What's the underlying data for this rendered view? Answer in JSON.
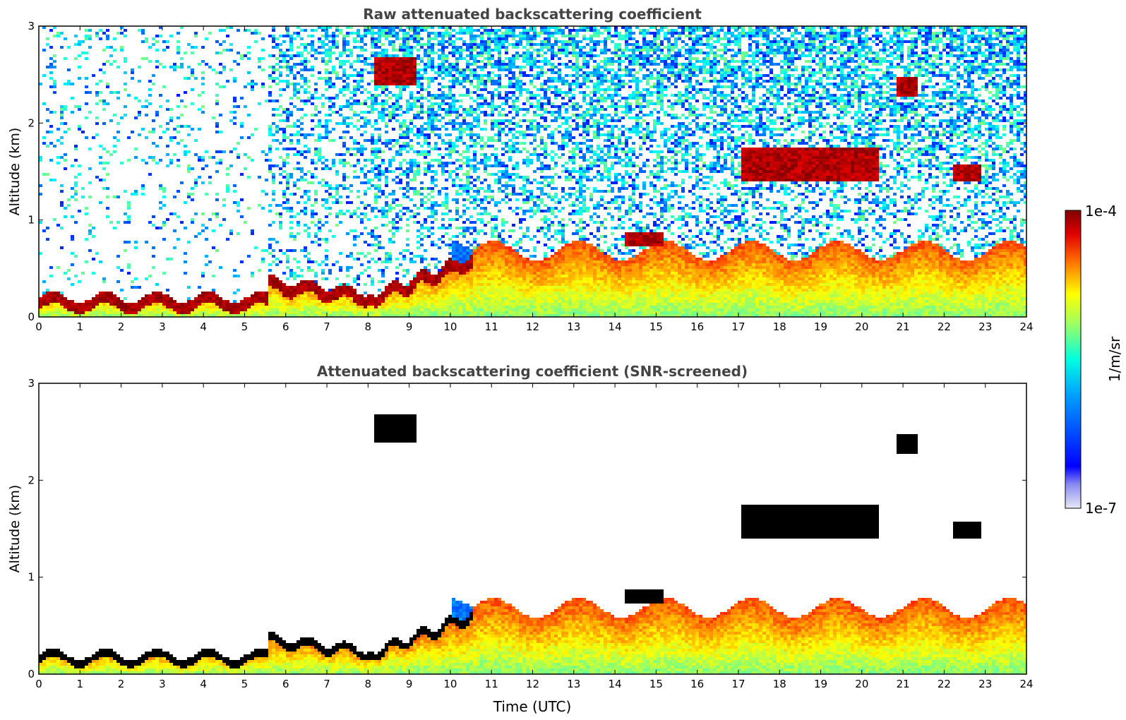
{
  "figure": {
    "panels": [
      {
        "title": "Raw attenuated backscattering coefficient",
        "ylabel": "Altitude (km)",
        "xlabel": "",
        "mode": "raw"
      },
      {
        "title": "Attenuated backscattering coefficient (SNR-screened)",
        "ylabel": "Altitude (km)",
        "xlabel": "Time (UTC)",
        "mode": "screened"
      }
    ],
    "colorbar": {
      "label": "1/m/sr",
      "max_label": "1e-4",
      "min_label": "1e-7",
      "colormap": "jet",
      "stops": [
        "#e8e8f8",
        "#0000ff",
        "#00ffff",
        "#ffff00",
        "#ff0000",
        "#7f0000"
      ]
    }
  },
  "chart_data": [
    {
      "type": "heatmap",
      "title": "Raw attenuated backscattering coefficient",
      "xlabel": "",
      "ylabel": "Altitude (km)",
      "xlim": [
        0,
        24
      ],
      "ylim": [
        0,
        3
      ],
      "x_ticks": [
        "0",
        "1",
        "2",
        "3",
        "4",
        "5",
        "6",
        "7",
        "8",
        "9",
        "10",
        "11",
        "12",
        "13",
        "14",
        "15",
        "16",
        "17",
        "18",
        "19",
        "20",
        "21",
        "22",
        "23",
        "24"
      ],
      "y_ticks": [
        "0",
        "1",
        "2",
        "3"
      ],
      "value_range": [
        1e-07,
        0.0001
      ],
      "colorbar_label": "1/m/sr",
      "features": [
        {
          "name": "boundary layer top",
          "time": [
            0,
            10.5
          ],
          "altitude_km": [
            0.1,
            0.7
          ]
        },
        {
          "name": "cloud layer",
          "time": [
            8.1,
            9.1
          ],
          "altitude_km": [
            2.4,
            2.7
          ]
        },
        {
          "name": "cloud layer",
          "time": [
            14.2,
            15.1
          ],
          "altitude_km": [
            0.75,
            0.9
          ]
        },
        {
          "name": "cloud layer",
          "time": [
            17.0,
            20.4
          ],
          "altitude_km": [
            1.4,
            1.75
          ]
        },
        {
          "name": "cloud layer",
          "time": [
            20.8,
            21.3
          ],
          "altitude_km": [
            2.3,
            2.5
          ]
        },
        {
          "name": "cloud layer",
          "time": [
            22.2,
            22.9
          ],
          "altitude_km": [
            1.4,
            1.6
          ]
        }
      ]
    },
    {
      "type": "heatmap",
      "title": "Attenuated backscattering coefficient (SNR-screened)",
      "xlabel": "Time (UTC)",
      "ylabel": "Altitude (km)",
      "xlim": [
        0,
        24
      ],
      "ylim": [
        0,
        3
      ],
      "x_ticks": [
        "0",
        "1",
        "2",
        "3",
        "4",
        "5",
        "6",
        "7",
        "8",
        "9",
        "10",
        "11",
        "12",
        "13",
        "14",
        "15",
        "16",
        "17",
        "18",
        "19",
        "20",
        "21",
        "22",
        "23",
        "24"
      ],
      "y_ticks": [
        "0",
        "1",
        "2",
        "3"
      ],
      "value_range": [
        1e-07,
        0.0001
      ],
      "colorbar_label": "1/m/sr"
    }
  ]
}
